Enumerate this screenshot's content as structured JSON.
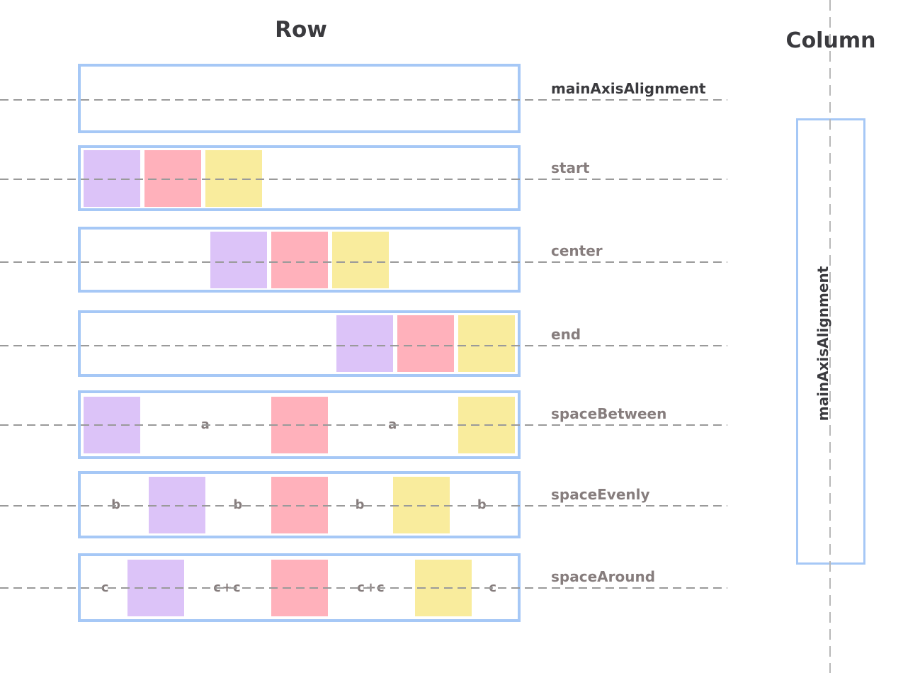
{
  "titles": {
    "row": "Row",
    "column": "Column"
  },
  "colors": {
    "purple": "#dcc3f8",
    "pink": "#ffb1bb",
    "yellow": "#f9ec9d",
    "box_border": "#a6c8f6",
    "dash_gray": "#9a9a9a",
    "label_gray": "#867d7d",
    "label_dark": "#3a3a3e"
  },
  "row_section": {
    "rows": [
      {
        "label": "mainAxisAlignment",
        "justify": "start",
        "cells": []
      },
      {
        "label": "start",
        "justify": "start",
        "cells": [
          {
            "square": "purple"
          },
          {
            "square": "pink"
          },
          {
            "square": "yellow"
          }
        ]
      },
      {
        "label": "center",
        "justify": "center",
        "cells": [
          {
            "square": "purple"
          },
          {
            "square": "pink"
          },
          {
            "square": "yellow"
          }
        ]
      },
      {
        "label": "end",
        "justify": "end",
        "cells": [
          {
            "square": "purple"
          },
          {
            "square": "pink"
          },
          {
            "square": "yellow"
          }
        ]
      },
      {
        "label": "spaceBetween",
        "justify": "between",
        "cells": [
          {
            "square": "purple"
          },
          {
            "text": "a",
            "flex": 1
          },
          {
            "square": "pink"
          },
          {
            "text": "a",
            "flex": 1
          },
          {
            "square": "yellow"
          }
        ]
      },
      {
        "label": "spaceEvenly",
        "justify": "between",
        "cells": [
          {
            "text": "b",
            "flex": 1
          },
          {
            "square": "purple"
          },
          {
            "text": "b",
            "flex": 1
          },
          {
            "square": "pink"
          },
          {
            "text": "b",
            "flex": 1
          },
          {
            "square": "yellow"
          },
          {
            "text": "b",
            "flex": 1
          }
        ]
      },
      {
        "label": "spaceAround",
        "justify": "between",
        "cells": [
          {
            "text": "c",
            "flex": 1
          },
          {
            "square": "purple"
          },
          {
            "text": "c+c",
            "flex": 2
          },
          {
            "square": "pink"
          },
          {
            "text": "c+c",
            "flex": 2
          },
          {
            "square": "yellow"
          },
          {
            "text": "c",
            "flex": 1
          }
        ]
      }
    ]
  },
  "column_section": {
    "label": "mainAxisAlignment"
  }
}
